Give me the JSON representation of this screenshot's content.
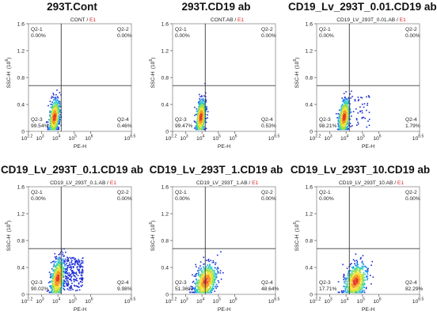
{
  "chart_data": [
    {
      "type": "scatter",
      "title": "293T.Cont",
      "subtitle_sample": "CONT",
      "subtitle_tube": "E1",
      "xlabel": "PE-H",
      "ylabel": "SSC-H",
      "ylabel_exp": "(10",
      "ylabel_exp_sup": "6",
      "ylabel_end": ")",
      "x_ticks": [
        "10",
        "10",
        "10",
        "10",
        "10",
        "10"
      ],
      "x_tick_exps": [
        "2.2",
        "3",
        "4",
        "5",
        "6",
        "8.5"
      ],
      "y_ticks": [
        "0",
        "0.4",
        "0.8",
        "1.2",
        "1.6"
      ],
      "xlim": [
        2.2,
        8.5
      ],
      "ylim": [
        0,
        1.6
      ],
      "x_log": true,
      "quadrants": [
        {
          "name": "Q2-1",
          "pct": "0.00%"
        },
        {
          "name": "Q2-2",
          "pct": "0.00%"
        },
        {
          "name": "Q2-3",
          "pct": "99.54%"
        },
        {
          "name": "Q2-4",
          "pct": "0.46%"
        }
      ],
      "gate_x_log": 4.2,
      "gate_y": 0.68,
      "population": {
        "center_x_log": 3.75,
        "center_y": 0.22,
        "spread_x": 0.15,
        "spread_y": 0.13,
        "tail_frac": 0.0
      }
    },
    {
      "type": "scatter",
      "title": "293T.CD19 ab",
      "subtitle_sample": "CONT.AB",
      "subtitle_tube": "E1",
      "xlabel": "PE-H",
      "ylabel": "SSC-H",
      "ylabel_exp": "(10",
      "ylabel_exp_sup": "6",
      "ylabel_end": ")",
      "x_ticks": [
        "10",
        "10",
        "10",
        "10",
        "10",
        "10"
      ],
      "x_tick_exps": [
        "2.2",
        "3",
        "4",
        "5",
        "6",
        "8.5"
      ],
      "y_ticks": [
        "0",
        "0.4",
        "0.8",
        "1.2",
        "1.6"
      ],
      "xlim": [
        2.2,
        8.5
      ],
      "ylim": [
        0,
        1.6
      ],
      "x_log": true,
      "quadrants": [
        {
          "name": "Q2-1",
          "pct": "0.00%"
        },
        {
          "name": "Q2-2",
          "pct": "0.00%"
        },
        {
          "name": "Q2-3",
          "pct": "99.47%"
        },
        {
          "name": "Q2-4",
          "pct": "0.53%"
        }
      ],
      "gate_x_log": 4.2,
      "gate_y": 0.68,
      "population": {
        "center_x_log": 3.9,
        "center_y": 0.22,
        "spread_x": 0.14,
        "spread_y": 0.13,
        "tail_frac": 0.0
      }
    },
    {
      "type": "scatter",
      "title": "CD19_Lv_293T_0.01.CD19 ab",
      "subtitle_sample": "CD19_LV_293T_0.01.AB",
      "subtitle_tube": "E1",
      "xlabel": "PE-H",
      "ylabel": "SSC-H",
      "ylabel_exp": "(10",
      "ylabel_exp_sup": "6",
      "ylabel_end": ")",
      "x_ticks": [
        "10",
        "10",
        "10",
        "10",
        "10",
        "10"
      ],
      "x_tick_exps": [
        "2.2",
        "3",
        "4",
        "5",
        "6",
        "8.5"
      ],
      "y_ticks": [
        "0",
        "0.4",
        "0.8",
        "1.2",
        "1.6"
      ],
      "xlim": [
        2.2,
        8.5
      ],
      "ylim": [
        0,
        1.6
      ],
      "x_log": true,
      "quadrants": [
        {
          "name": "Q2-1",
          "pct": "0.00%"
        },
        {
          "name": "Q2-2",
          "pct": "0.00%"
        },
        {
          "name": "Q2-3",
          "pct": "98.21%"
        },
        {
          "name": "Q2-4",
          "pct": "1.79%"
        }
      ],
      "gate_x_log": 4.2,
      "gate_y": 0.68,
      "population": {
        "center_x_log": 3.85,
        "center_y": 0.22,
        "spread_x": 0.16,
        "spread_y": 0.13,
        "tail_frac": 0.02
      }
    },
    {
      "type": "scatter",
      "title": "CD19_Lv_293T_0.1.CD19 ab",
      "subtitle_sample": "CD19_LV_293T_0.1.AB",
      "subtitle_tube": "E1",
      "xlabel": "PE-H",
      "ylabel": "SSC-H",
      "ylabel_exp": "(10",
      "ylabel_exp_sup": "6",
      "ylabel_end": ")",
      "x_ticks": [
        "10",
        "10",
        "10",
        "10",
        "10",
        "10"
      ],
      "x_tick_exps": [
        "2.2",
        "3",
        "4",
        "5",
        "6",
        "8.5"
      ],
      "y_ticks": [
        "0",
        "0.4",
        "0.8",
        "1.2",
        "1.6"
      ],
      "xlim": [
        2.2,
        8.5
      ],
      "ylim": [
        0,
        1.6
      ],
      "x_log": true,
      "quadrants": [
        {
          "name": "Q2-1",
          "pct": "0.00%"
        },
        {
          "name": "Q2-2",
          "pct": "0.00%"
        },
        {
          "name": "Q2-3",
          "pct": "90.02%"
        },
        {
          "name": "Q2-4",
          "pct": "9.98%"
        }
      ],
      "gate_x_log": 4.2,
      "gate_y": 0.68,
      "population": {
        "center_x_log": 3.95,
        "center_y": 0.24,
        "spread_x": 0.2,
        "spread_y": 0.15,
        "tail_frac": 0.1
      }
    },
    {
      "type": "scatter",
      "title": "CD19_Lv_293T_1.CD19 ab",
      "subtitle_sample": "CD19_LV_293T_1.AB",
      "subtitle_tube": "E1",
      "xlabel": "PE-H",
      "ylabel": "SSC-H",
      "ylabel_exp": "(10",
      "ylabel_exp_sup": "6",
      "ylabel_end": ")",
      "x_ticks": [
        "10",
        "10",
        "10",
        "10",
        "10",
        "10"
      ],
      "x_tick_exps": [
        "2.2",
        "3",
        "4",
        "5",
        "6",
        "8.5"
      ],
      "y_ticks": [
        "0",
        "0.4",
        "0.8",
        "1.2",
        "1.6"
      ],
      "xlim": [
        2.2,
        8.5
      ],
      "ylim": [
        0,
        1.6
      ],
      "x_log": true,
      "quadrants": [
        {
          "name": "Q2-1",
          "pct": "0.00%"
        },
        {
          "name": "Q2-2",
          "pct": "0.00%"
        },
        {
          "name": "Q2-3",
          "pct": "51.36%"
        },
        {
          "name": "Q2-4",
          "pct": "48.64%"
        }
      ],
      "gate_x_log": 4.2,
      "gate_y": 0.68,
      "population": {
        "center_x_log": 4.2,
        "center_y": 0.2,
        "spread_x": 0.32,
        "spread_y": 0.13,
        "tail_frac": 0.0
      }
    },
    {
      "type": "scatter",
      "title": "CD19_Lv_293T_10.CD19 ab",
      "subtitle_sample": "CD19_LV_293T_10.AB",
      "subtitle_tube": "E1",
      "xlabel": "PE-H",
      "ylabel": "SSC-H",
      "ylabel_exp": "(10",
      "ylabel_exp_sup": "6",
      "ylabel_end": ")",
      "x_ticks": [
        "10",
        "10",
        "10",
        "10",
        "10",
        "10"
      ],
      "x_tick_exps": [
        "2.2",
        "3",
        "4",
        "5",
        "6",
        "8.5"
      ],
      "y_ticks": [
        "0",
        "0.4",
        "0.8",
        "1.2",
        "1.6"
      ],
      "xlim": [
        2.2,
        8.5
      ],
      "ylim": [
        0,
        1.6
      ],
      "x_log": true,
      "quadrants": [
        {
          "name": "Q2-1",
          "pct": "0.00%"
        },
        {
          "name": "Q2-2",
          "pct": "0.00%"
        },
        {
          "name": "Q2-3",
          "pct": "17.71%"
        },
        {
          "name": "Q2-4",
          "pct": "82.29%"
        }
      ],
      "gate_x_log": 4.2,
      "gate_y": 0.68,
      "population": {
        "center_x_log": 4.55,
        "center_y": 0.2,
        "spread_x": 0.32,
        "spread_y": 0.13,
        "tail_frac": 0.0
      }
    }
  ],
  "colors": {
    "gate_line": "#3a3a3a",
    "subtitle_tube": "#e02020",
    "density": [
      "#1a2bd6",
      "#1f8fe8",
      "#2fd0c0",
      "#9be04a",
      "#f6e23a",
      "#f29a2e",
      "#e8392a"
    ]
  }
}
